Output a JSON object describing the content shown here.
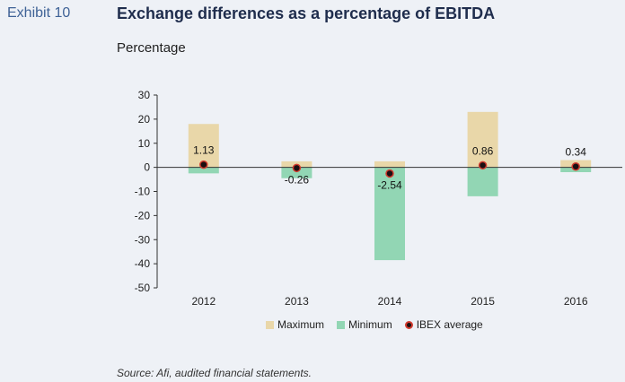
{
  "header": {
    "exhibit": "Exhibit 10",
    "title": "Exchange differences as a percentage of EBITDA",
    "subtitle": "Percentage"
  },
  "legend": {
    "maximum": "Maximum",
    "minimum": "Minimum",
    "average": "IBEX average"
  },
  "source": "Source: Afi, audited financial statements.",
  "colors": {
    "maximum": "#e9d7a9",
    "minimum": "#92d6b4",
    "average_fill": "#1b0f12",
    "average_stroke": "#d23b2e",
    "axis": "#333333"
  },
  "chart_data": {
    "type": "bar",
    "categories": [
      "2012",
      "2013",
      "2014",
      "2015",
      "2016"
    ],
    "series": [
      {
        "name": "Maximum",
        "values": [
          18,
          2.5,
          2.5,
          23,
          3
        ]
      },
      {
        "name": "Minimum",
        "values": [
          -2.5,
          -4.5,
          -38.5,
          -12,
          -2
        ]
      },
      {
        "name": "IBEX average",
        "values": [
          1.13,
          -0.26,
          -2.54,
          0.86,
          0.34
        ]
      }
    ],
    "data_labels": [
      "1.13",
      "-0.26",
      "-2.54",
      "0.86",
      "0.34"
    ],
    "yticks": [
      "30",
      "20",
      "10",
      "0",
      "-10",
      "-20",
      "-30",
      "-40",
      "-50"
    ],
    "ylim": [
      -50,
      30
    ],
    "grid": false,
    "legend_position": "bottom"
  }
}
